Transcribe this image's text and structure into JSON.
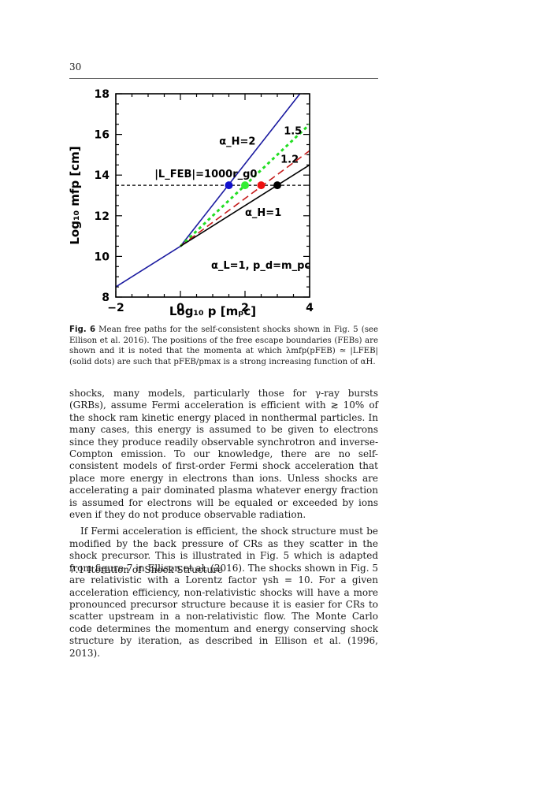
{
  "page": {
    "number": "30"
  },
  "figure": {
    "label": "Fig. 6",
    "caption": "Mean free paths for the self-consistent shocks shown in Fig. 5 (see Ellison et al. 2016). The positions of the free escape boundaries (FEBs) are shown and it is noted that the momenta at which λmfp(pFEB) ≃ |LFEB| (solid dots) are such that pFEB/pmax is a strong increasing function of αH."
  },
  "chart_data": {
    "type": "line",
    "xlabel": "Log₁₀ p [mₚc]",
    "ylabel": "Log₁₀ mfp [cm]",
    "xlim": [
      -2,
      4
    ],
    "ylim": [
      8,
      18
    ],
    "xticks": [
      "−2",
      "0",
      "2",
      "4"
    ],
    "yticks": [
      "8",
      "10",
      "12",
      "14",
      "16",
      "18"
    ],
    "grid": false,
    "series": [
      {
        "label": "α_H=2",
        "color": "#1a1aa0",
        "dash": "solid",
        "x": [
          -2,
          0,
          3.7
        ],
        "y": [
          8.5,
          10.5,
          18
        ]
      },
      {
        "label": "1.5",
        "color": "#22dd22",
        "dash": "dotted",
        "x": [
          0,
          4
        ],
        "y": [
          10.5,
          16.5
        ]
      },
      {
        "label": "1.2",
        "color": "#c41a1a",
        "dash": "dashed",
        "x": [
          0,
          4
        ],
        "y": [
          10.5,
          15.2
        ]
      },
      {
        "label": "α_H=1",
        "color": "#000000",
        "dash": "solid",
        "x": [
          0,
          4
        ],
        "y": [
          10.5,
          14.5
        ]
      }
    ],
    "feb_line": {
      "label": "|L_FEB|=1000r_g0",
      "y": 13.5,
      "color": "#000000",
      "dash": "dashed"
    },
    "points": [
      {
        "x": 1.5,
        "y": 13.5,
        "color": "#1010cc"
      },
      {
        "x": 2.0,
        "y": 13.5,
        "color": "#33ee33"
      },
      {
        "x": 2.5,
        "y": 13.5,
        "color": "#ee1111"
      },
      {
        "x": 3.0,
        "y": 13.5,
        "color": "#000000"
      }
    ],
    "annotations": [
      {
        "text": "α_H=2",
        "x": 1.2,
        "y": 15.5
      },
      {
        "text": "1.5",
        "x": 3.2,
        "y": 16.0
      },
      {
        "text": "1.2",
        "x": 3.1,
        "y": 14.6
      },
      {
        "text": "α_H=1",
        "x": 2.0,
        "y": 12.0
      },
      {
        "text": "α_L=1, p_d=m_pc",
        "x": 0.95,
        "y": 9.4
      }
    ]
  },
  "body": {
    "paragraphs": [
      "shocks, many models, particularly those for γ-ray bursts (GRBs), assume Fermi acceleration is efficient with ≳ 10% of the shock ram kinetic energy placed in nonthermal particles. In many cases, this energy is assumed to be given to electrons since they produce readily observable synchrotron and inverse-Compton emission. To our knowledge, there are no self-consistent models of first-order Fermi shock acceleration that place more energy in electrons than ions. Unless shocks are accelerating a pair dominated plasma whatever energy fraction is assumed for electrons will be equaled or exceeded by ions even if they do not produce observable radiation.",
      "If Fermi acceleration is efficient, the shock structure must be modified by the back pressure of CRs as they scatter in the shock precursor. This is illustrated in Fig. 5 which is adapted from figure 7 in Ellison et al. (2016). The shocks shown in Fig. 5 are relativistic with a Lorentz factor γsh = 10. For a given acceleration efficiency, non-relativistic shocks will have a more pronounced precursor structure because it is easier for CRs to scatter upstream in a non-relativistic flow. The Monte Carlo code determines the momentum and energy conserving shock structure by iteration, as described in Ellison et al. (1996, 2013)."
    ],
    "section_heading": "7.1 Iteration of Shock Structure"
  }
}
